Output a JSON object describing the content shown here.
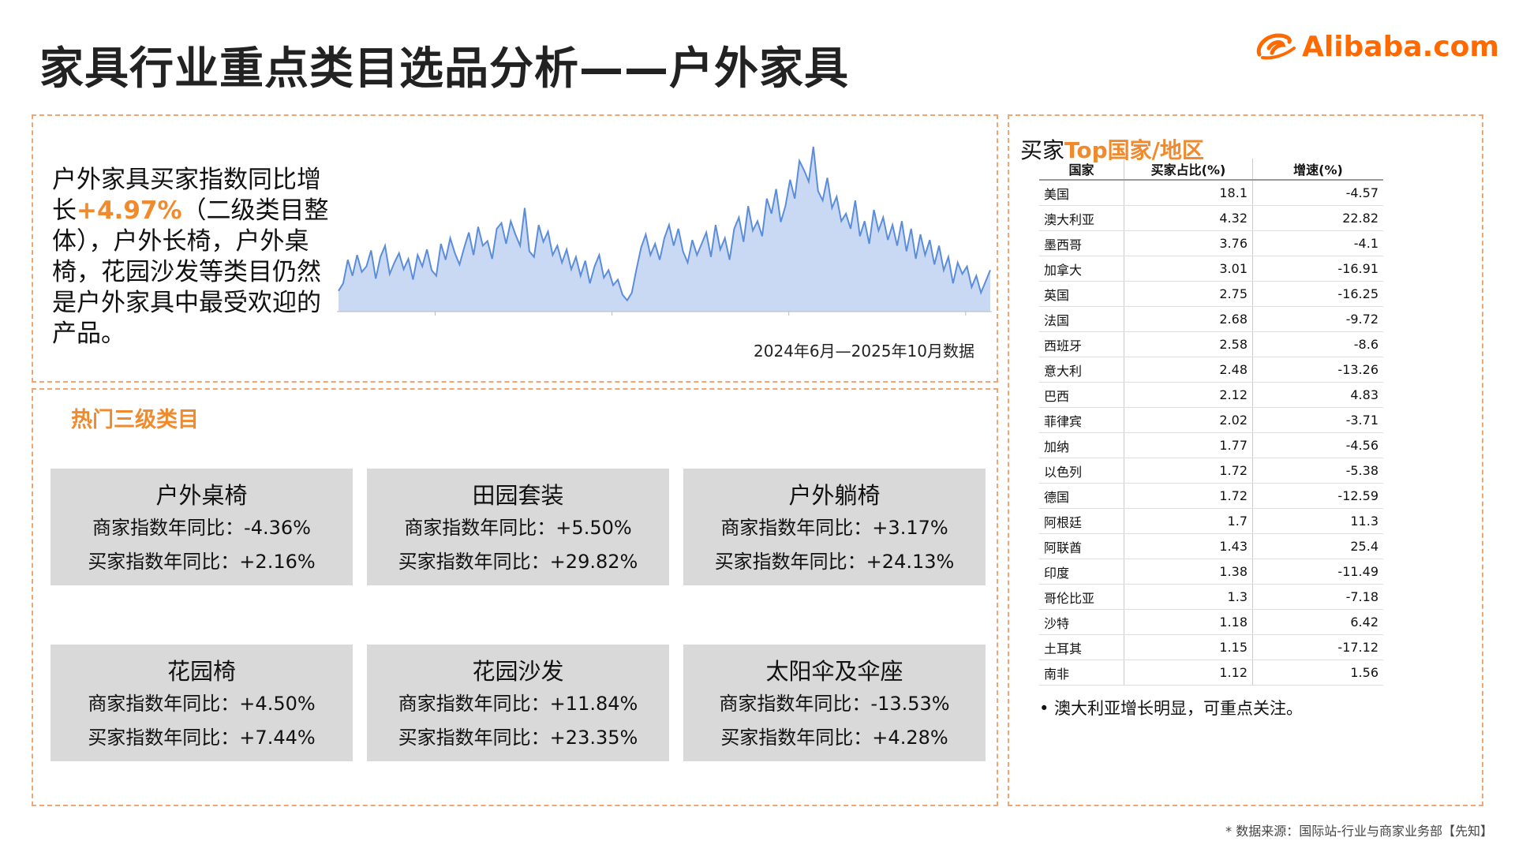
{
  "title": "家具行业重点类目选品分析——户外家具",
  "logo": {
    "text": "Alibaba.com",
    "brand_color": "#ff6a00"
  },
  "accent_color": "#f08a2c",
  "intro": {
    "pre": "户外家具买家指数同比增长",
    "highlight": "+4.97%",
    "post": "（二级类目整体），户外长椅，户外桌椅，花园沙发等类目仍然是户外家具中最受欢迎的产品。"
  },
  "chart_caption": "2024年6月—2025年10月数据",
  "chart_data": {
    "type": "area",
    "title": "",
    "xlabel": "",
    "ylabel": "",
    "y": [
      22,
      30,
      55,
      38,
      60,
      42,
      48,
      65,
      35,
      58,
      70,
      40,
      52,
      62,
      45,
      56,
      34,
      60,
      48,
      66,
      44,
      38,
      72,
      55,
      78,
      62,
      50,
      68,
      84,
      60,
      90,
      70,
      75,
      56,
      88,
      94,
      72,
      96,
      82,
      70,
      110,
      64,
      58,
      92,
      74,
      85,
      60,
      70,
      52,
      66,
      45,
      58,
      38,
      54,
      30,
      48,
      60,
      36,
      44,
      28,
      34,
      18,
      12,
      20,
      45,
      68,
      82,
      60,
      72,
      55,
      78,
      92,
      70,
      88,
      64,
      52,
      76,
      60,
      72,
      84,
      58,
      92,
      66,
      78,
      55,
      88,
      100,
      74,
      112,
      86,
      96,
      80,
      120,
      104,
      130,
      95,
      112,
      140,
      120,
      160,
      150,
      138,
      175,
      128,
      118,
      142,
      110,
      122,
      96,
      104,
      88,
      118,
      80,
      96,
      72,
      108,
      86,
      100,
      76,
      92,
      70,
      96,
      64,
      88,
      56,
      82,
      60,
      76,
      50,
      70,
      44,
      58,
      30,
      52,
      40,
      48,
      26,
      38,
      20,
      32,
      44
    ],
    "ylim": [
      0,
      180
    ],
    "grid": false,
    "fill_color": "#c9d9f4",
    "line_color": "#5b8ddb"
  },
  "hot_section": {
    "label": "热门三级类目"
  },
  "cards": [
    {
      "name": "户外桌椅",
      "seller": "商家指数年同比：-4.36%",
      "buyer": "买家指数年同比：+2.16%"
    },
    {
      "name": "田园套装",
      "seller": "商家指数年同比：+5.50%",
      "buyer": "买家指数年同比：+29.82%"
    },
    {
      "name": "户外躺椅",
      "seller": "商家指数年同比：+3.17%",
      "buyer": "买家指数年同比：+24.13%"
    },
    {
      "name": "花园椅",
      "seller": "商家指数年同比：+4.50%",
      "buyer": "买家指数年同比：+7.44%"
    },
    {
      "name": "花园沙发",
      "seller": "商家指数年同比：+11.84%",
      "buyer": "买家指数年同比：+23.35%"
    },
    {
      "name": "太阳伞及伞座",
      "seller": "商家指数年同比：-13.53%",
      "buyer": "买家指数年同比：+4.28%"
    }
  ],
  "countries": {
    "title_a": "买家",
    "title_b": "Top国家/地区",
    "headers": [
      "国家",
      "买家占比(%)",
      "增速(%)"
    ],
    "rows": [
      [
        "美国",
        "18.1",
        "-4.57"
      ],
      [
        "澳大利亚",
        "4.32",
        "22.82"
      ],
      [
        "墨西哥",
        "3.76",
        "-4.1"
      ],
      [
        "加拿大",
        "3.01",
        "-16.91"
      ],
      [
        "英国",
        "2.75",
        "-16.25"
      ],
      [
        "法国",
        "2.68",
        "-9.72"
      ],
      [
        "西班牙",
        "2.58",
        "-8.6"
      ],
      [
        "意大利",
        "2.48",
        "-13.26"
      ],
      [
        "巴西",
        "2.12",
        "4.83"
      ],
      [
        "菲律宾",
        "2.02",
        "-3.71"
      ],
      [
        "加纳",
        "1.77",
        "-4.56"
      ],
      [
        "以色列",
        "1.72",
        "-5.38"
      ],
      [
        "德国",
        "1.72",
        "-12.59"
      ],
      [
        "阿根廷",
        "1.7",
        "11.3"
      ],
      [
        "阿联酋",
        "1.43",
        "25.4"
      ],
      [
        "印度",
        "1.38",
        "-11.49"
      ],
      [
        "哥伦比亚",
        "1.3",
        "-7.18"
      ],
      [
        "沙特",
        "1.18",
        "6.42"
      ],
      [
        "土耳其",
        "1.15",
        "-17.12"
      ],
      [
        "南非",
        "1.12",
        "1.56"
      ]
    ],
    "note": "•  澳大利亚增长明显，可重点关注。"
  },
  "source": "* 数据来源：国际站-行业与商家业务部【先知】"
}
